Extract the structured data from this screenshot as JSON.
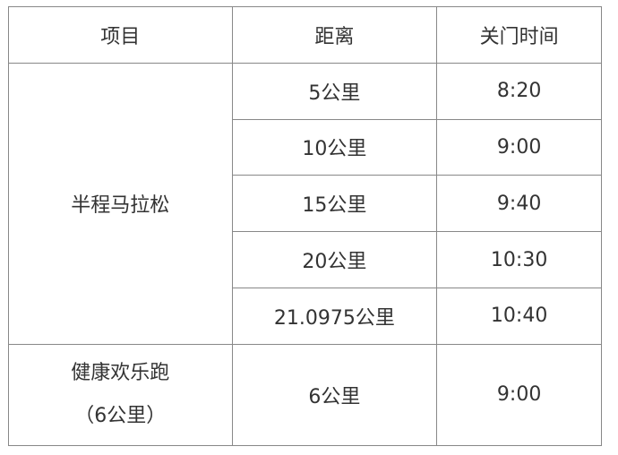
{
  "headers": [
    "项目",
    "距离",
    "关门时间"
  ],
  "groups": [
    {
      "name": "半程马拉松",
      "rows": [
        {
          "distance": "5公里",
          "close": "8:20"
        },
        {
          "distance": "10公里",
          "close": "9:00"
        },
        {
          "distance": "15公里",
          "close": "9:40"
        },
        {
          "distance": "20公里",
          "close": "10:30"
        },
        {
          "distance": "21.0975公里",
          "close": "10:40"
        }
      ]
    },
    {
      "name_line1": "健康欢乐跑",
      "name_line2": "（6公里）",
      "rows": [
        {
          "distance": "6公里",
          "close": "9:00"
        }
      ]
    }
  ]
}
